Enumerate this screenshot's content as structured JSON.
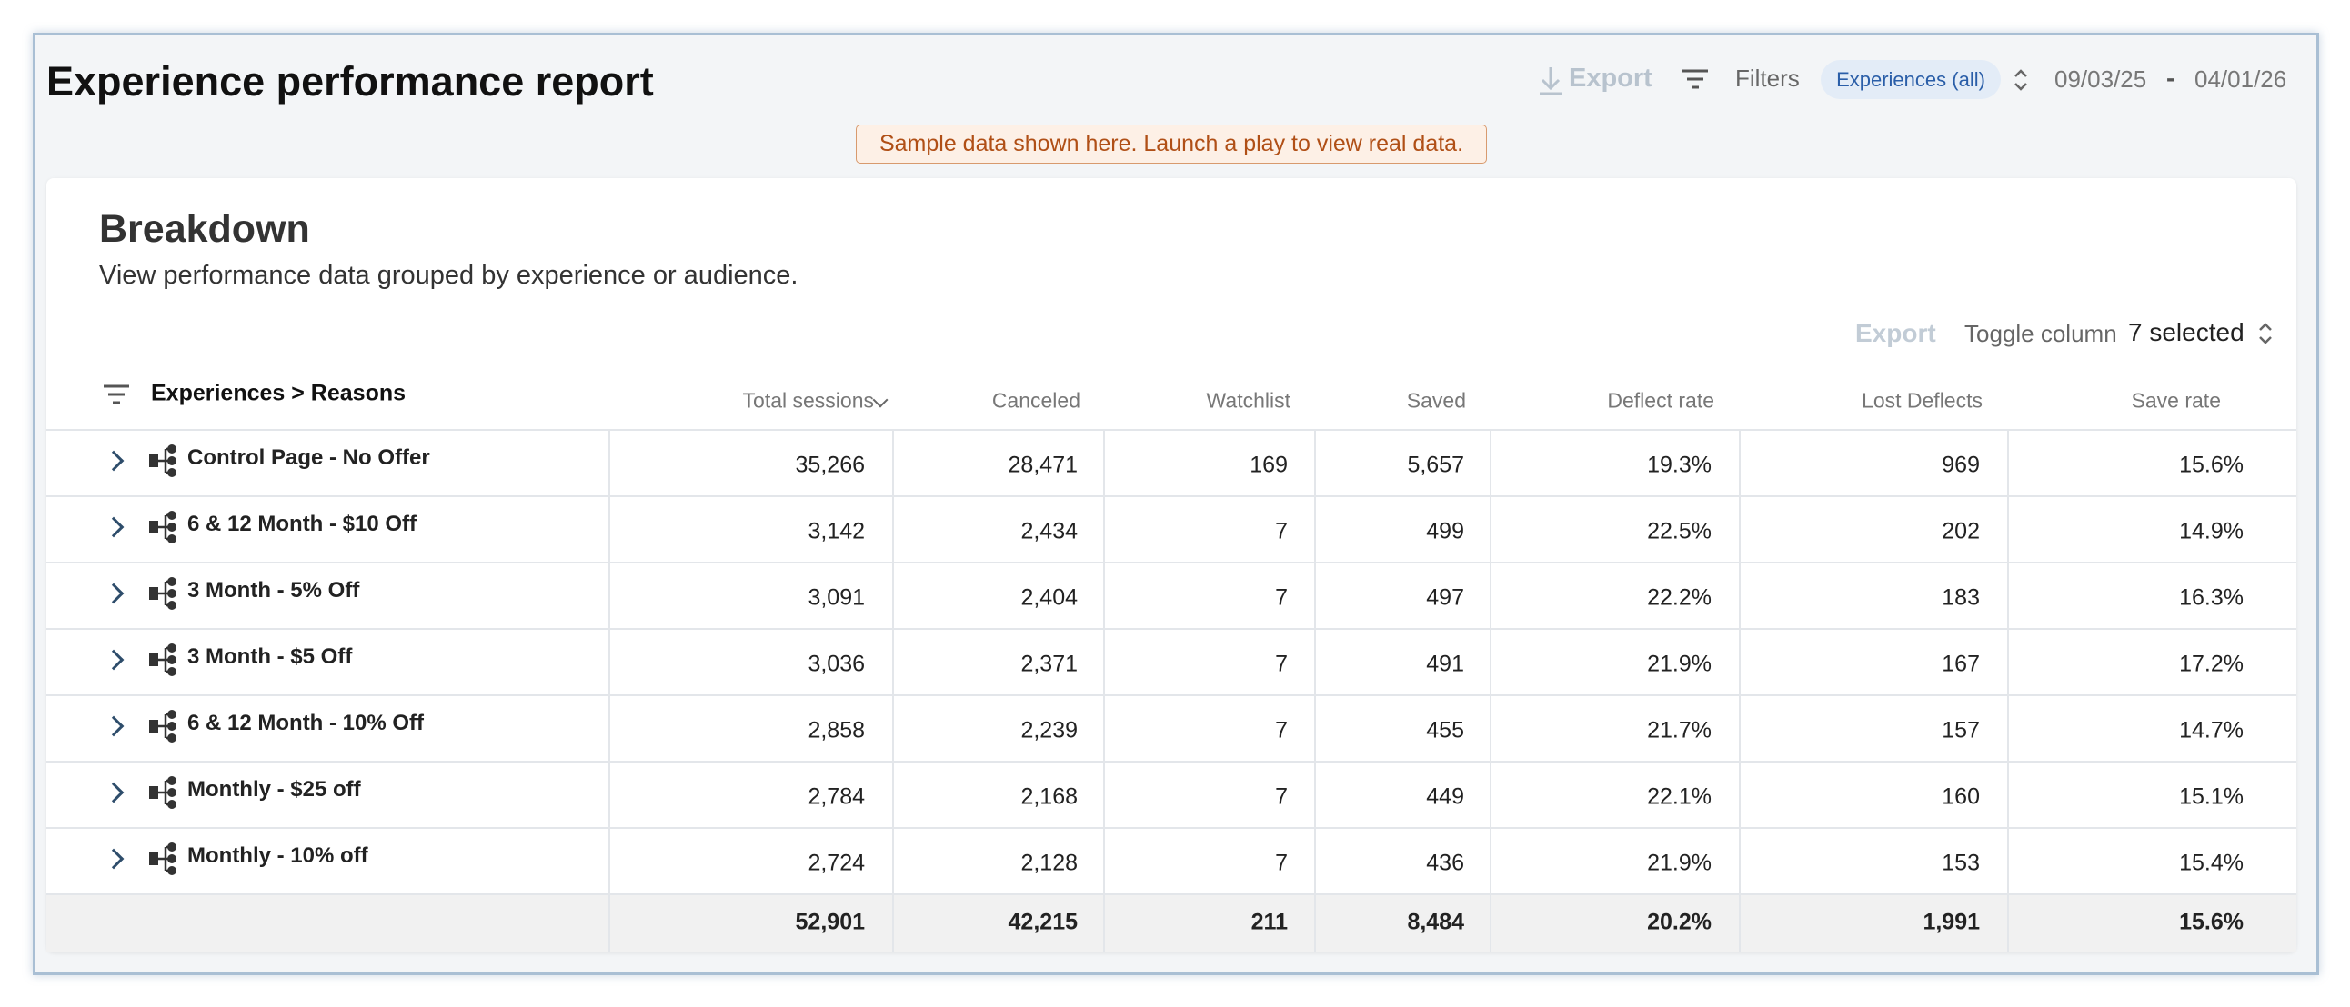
{
  "header": {
    "title": "Experience performance report",
    "export": "Export",
    "filters": "Filters",
    "experiences": "Experiences (all)",
    "date_from": "09/03/25",
    "date_separator": "-",
    "date_to": "04/01/26"
  },
  "banner": "Sample data shown here. Launch a play to view real data.",
  "breakdown": {
    "title": "Breakdown",
    "subtitle": "View performance data grouped by experience or audience.",
    "export": "Export",
    "toggle_label": "Toggle column",
    "toggle_value": "7 selected"
  },
  "table": {
    "columns": [
      "Experiences > Reasons",
      "Total sessions",
      "Canceled",
      "Watchlist",
      "Saved",
      "Deflect rate",
      "Lost Deflects",
      "Save rate"
    ],
    "rows": [
      {
        "label": "Control Page - No Offer",
        "cells": [
          "35,266",
          "28,471",
          "169",
          "5,657",
          "19.3%",
          "969",
          "15.6%"
        ]
      },
      {
        "label": "6 & 12 Month - $10 Off",
        "cells": [
          "3,142",
          "2,434",
          "7",
          "499",
          "22.5%",
          "202",
          "14.9%"
        ]
      },
      {
        "label": "3 Month - 5% Off",
        "cells": [
          "3,091",
          "2,404",
          "7",
          "497",
          "22.2%",
          "183",
          "16.3%"
        ]
      },
      {
        "label": "3 Month - $5 Off",
        "cells": [
          "3,036",
          "2,371",
          "7",
          "491",
          "21.9%",
          "167",
          "17.2%"
        ]
      },
      {
        "label": "6 & 12 Month - 10% Off",
        "cells": [
          "2,858",
          "2,239",
          "7",
          "455",
          "21.7%",
          "157",
          "14.7%"
        ]
      },
      {
        "label": "Monthly - $25 off",
        "cells": [
          "2,784",
          "2,168",
          "7",
          "449",
          "22.1%",
          "160",
          "15.1%"
        ]
      },
      {
        "label": "Monthly - 10% off",
        "cells": [
          "2,724",
          "2,128",
          "7",
          "436",
          "21.9%",
          "153",
          "15.4%"
        ]
      }
    ],
    "totals": [
      "52,901",
      "42,215",
      "211",
      "8,484",
      "20.2%",
      "1,991",
      "15.6%"
    ]
  }
}
